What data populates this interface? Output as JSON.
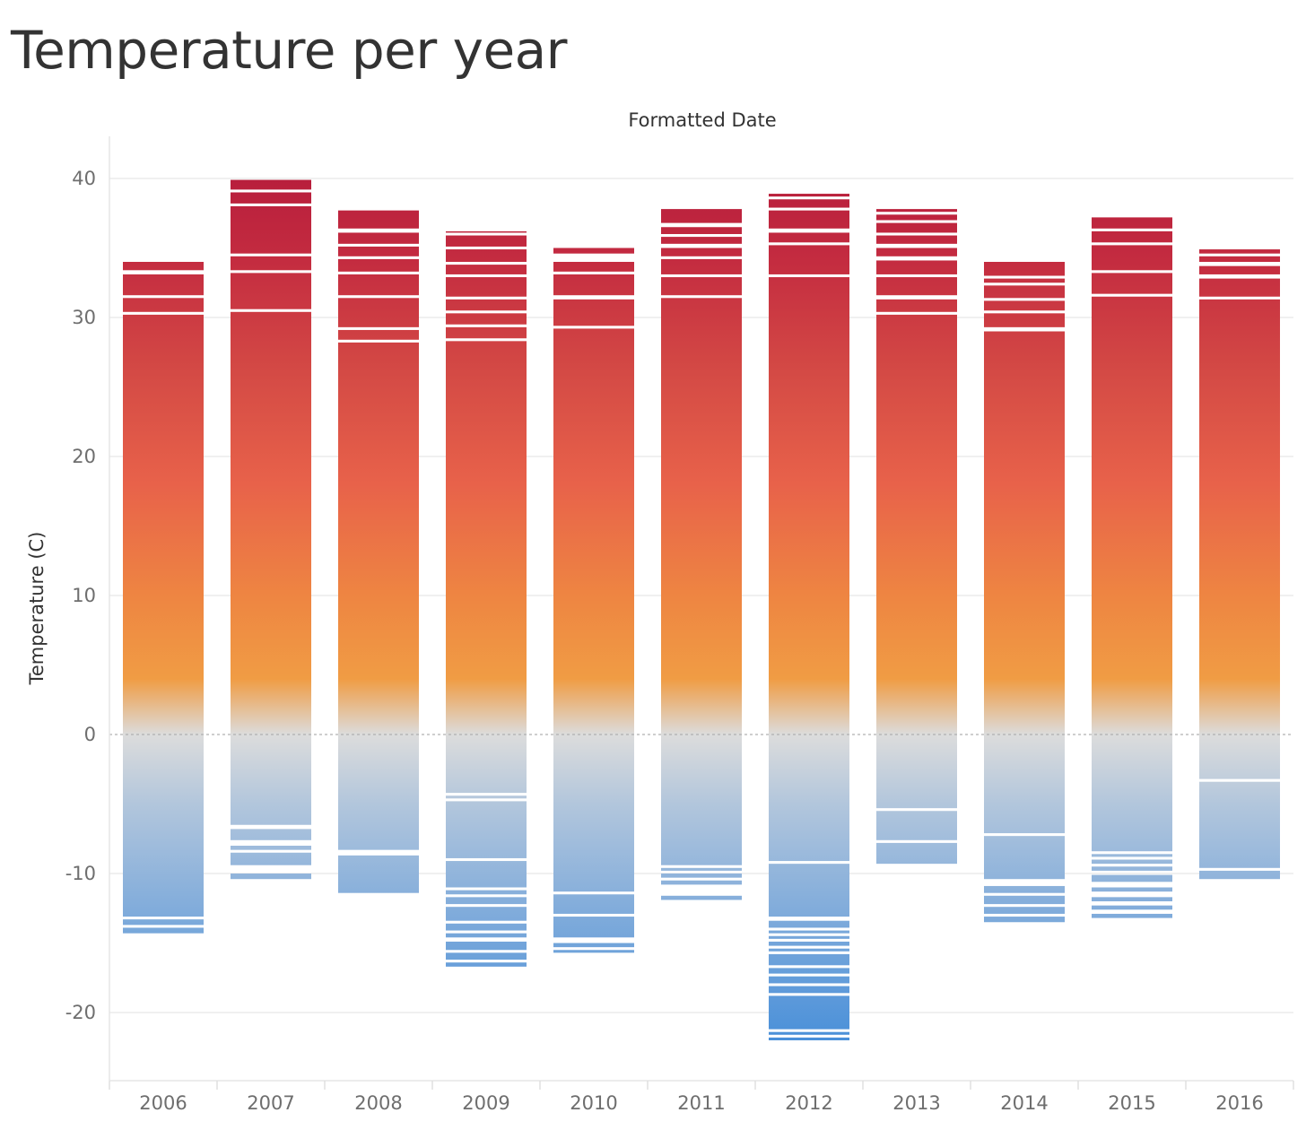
{
  "page": {
    "title": "Temperature per year"
  },
  "chart_data": {
    "type": "bar",
    "title": "Temperature per year",
    "column_header": "Formatted Date",
    "xlabel": "",
    "ylabel": "Temperature (C)",
    "ylim": [
      -25,
      42
    ],
    "yticks": [
      40,
      30,
      20,
      10,
      0,
      -10,
      -20
    ],
    "ytick_labels": [
      "40",
      "30",
      "20",
      "10",
      "0",
      "-10",
      "-20"
    ],
    "grid": true,
    "zero_line": "dashed",
    "color_scale": {
      "type": "diverging",
      "stops": [
        {
          "value": -22,
          "color": "#4a90d9"
        },
        {
          "value": -12,
          "color": "#85aedb"
        },
        {
          "value": -5,
          "color": "#b2c6dc"
        },
        {
          "value": 0,
          "color": "#dcdcdc"
        },
        {
          "value": 4,
          "color": "#f09c44"
        },
        {
          "value": 10,
          "color": "#ee8542"
        },
        {
          "value": 18,
          "color": "#e8624a"
        },
        {
          "value": 26,
          "color": "#d44a45"
        },
        {
          "value": 34,
          "color": "#c42c40"
        },
        {
          "value": 40,
          "color": "#b81e3c"
        }
      ]
    },
    "categories": [
      "2006",
      "2007",
      "2008",
      "2009",
      "2010",
      "2011",
      "2012",
      "2013",
      "2014",
      "2015",
      "2016"
    ],
    "series": [
      {
        "category": "2006",
        "segments": [
          [
            -14.3,
            -13.9
          ],
          [
            -13.7,
            -13.3
          ],
          [
            -13.1,
            30.2
          ],
          [
            30.4,
            31.4
          ],
          [
            31.6,
            33.1
          ],
          [
            33.4,
            34.0
          ]
        ]
      },
      {
        "category": "2007",
        "segments": [
          [
            -10.4,
            -10.0
          ],
          [
            -9.4,
            -8.5
          ],
          [
            -8.3,
            -8.0
          ],
          [
            -7.6,
            -6.8
          ],
          [
            -6.5,
            30.4
          ],
          [
            30.6,
            33.2
          ],
          [
            33.4,
            34.4
          ],
          [
            34.6,
            38.0
          ],
          [
            38.2,
            39.0
          ],
          [
            39.2,
            39.9
          ]
        ]
      },
      {
        "category": "2008",
        "segments": [
          [
            -11.4,
            -8.7
          ],
          [
            -8.3,
            28.2
          ],
          [
            28.4,
            29.1
          ],
          [
            29.3,
            31.4
          ],
          [
            31.6,
            33.1
          ],
          [
            33.3,
            34.2
          ],
          [
            34.4,
            35.1
          ],
          [
            35.3,
            36.1
          ],
          [
            36.4,
            37.7
          ]
        ]
      },
      {
        "category": "2009",
        "segments": [
          [
            -16.7,
            -16.4
          ],
          [
            -16.2,
            -15.7
          ],
          [
            -15.5,
            -14.9
          ],
          [
            -14.6,
            -14.3
          ],
          [
            -14.1,
            -13.6
          ],
          [
            -13.4,
            -12.4
          ],
          [
            -12.2,
            -11.7
          ],
          [
            -11.5,
            -11.2
          ],
          [
            -11.0,
            -9.1
          ],
          [
            -8.9,
            -4.8
          ],
          [
            -4.6,
            -4.4
          ],
          [
            -4.2,
            28.3
          ],
          [
            28.5,
            29.3
          ],
          [
            29.5,
            30.3
          ],
          [
            30.5,
            31.3
          ],
          [
            31.5,
            32.9
          ],
          [
            33.1,
            33.8
          ],
          [
            34.0,
            34.9
          ],
          [
            35.1,
            35.9
          ],
          [
            36.1,
            36.2
          ]
        ]
      },
      {
        "category": "2010",
        "segments": [
          [
            -15.7,
            -15.5
          ],
          [
            -15.3,
            -15.0
          ],
          [
            -14.6,
            -13.1
          ],
          [
            -12.9,
            -11.5
          ],
          [
            -11.3,
            29.2
          ],
          [
            29.4,
            31.3
          ],
          [
            31.6,
            33.1
          ],
          [
            33.3,
            34.0
          ],
          [
            34.6,
            35.0
          ]
        ]
      },
      {
        "category": "2011",
        "segments": [
          [
            -11.9,
            -11.6
          ],
          [
            -10.8,
            -10.5
          ],
          [
            -10.3,
            -10.0
          ],
          [
            -9.8,
            -9.6
          ],
          [
            -9.4,
            31.4
          ],
          [
            31.6,
            32.9
          ],
          [
            33.1,
            34.2
          ],
          [
            34.4,
            35.0
          ],
          [
            35.3,
            35.8
          ],
          [
            36.0,
            36.5
          ],
          [
            36.8,
            37.8
          ]
        ]
      },
      {
        "category": "2012",
        "segments": [
          [
            -22.0,
            -21.8
          ],
          [
            -21.6,
            -21.4
          ],
          [
            -21.2,
            -18.8
          ],
          [
            -18.6,
            -18.1
          ],
          [
            -17.9,
            -17.4
          ],
          [
            -17.2,
            -16.8
          ],
          [
            -16.6,
            -15.8
          ],
          [
            -15.6,
            -15.4
          ],
          [
            -15.2,
            -14.9
          ],
          [
            -14.7,
            -14.5
          ],
          [
            -14.3,
            -14.1
          ],
          [
            -13.9,
            -13.4
          ],
          [
            -13.1,
            -9.3
          ],
          [
            -9.1,
            32.9
          ],
          [
            33.1,
            35.2
          ],
          [
            35.4,
            36.1
          ],
          [
            36.4,
            37.7
          ],
          [
            37.9,
            38.5
          ],
          [
            38.7,
            38.9
          ]
        ]
      },
      {
        "category": "2013",
        "segments": [
          [
            -9.3,
            -7.8
          ],
          [
            -7.6,
            -5.5
          ],
          [
            -5.3,
            30.2
          ],
          [
            30.4,
            31.3
          ],
          [
            31.6,
            32.9
          ],
          [
            33.1,
            34.1
          ],
          [
            34.4,
            35.0
          ],
          [
            35.3,
            35.9
          ],
          [
            36.1,
            36.8
          ],
          [
            37.0,
            37.4
          ],
          [
            37.6,
            37.8
          ]
        ]
      },
      {
        "category": "2014",
        "segments": [
          [
            -13.5,
            -13.1
          ],
          [
            -12.9,
            -12.4
          ],
          [
            -12.2,
            -11.6
          ],
          [
            -11.4,
            -10.9
          ],
          [
            -10.4,
            -7.3
          ],
          [
            -7.1,
            29.0
          ],
          [
            29.3,
            30.3
          ],
          [
            30.5,
            31.2
          ],
          [
            31.4,
            32.3
          ],
          [
            32.5,
            32.8
          ],
          [
            33.0,
            34.0
          ]
        ]
      },
      {
        "category": "2015",
        "segments": [
          [
            -13.2,
            -12.9
          ],
          [
            -12.6,
            -12.3
          ],
          [
            -12.0,
            -11.7
          ],
          [
            -11.3,
            -11.0
          ],
          [
            -10.6,
            -10.1
          ],
          [
            -9.8,
            -9.5
          ],
          [
            -9.3,
            -9.0
          ],
          [
            -8.8,
            -8.6
          ],
          [
            -8.4,
            31.5
          ],
          [
            31.7,
            33.2
          ],
          [
            33.4,
            35.2
          ],
          [
            35.4,
            36.2
          ],
          [
            36.4,
            37.2
          ]
        ]
      },
      {
        "category": "2016",
        "segments": [
          [
            -10.4,
            -9.8
          ],
          [
            -9.6,
            -3.4
          ],
          [
            -3.2,
            31.3
          ],
          [
            31.5,
            32.8
          ],
          [
            33.1,
            33.7
          ],
          [
            34.0,
            34.4
          ],
          [
            34.6,
            34.9
          ]
        ]
      }
    ]
  }
}
